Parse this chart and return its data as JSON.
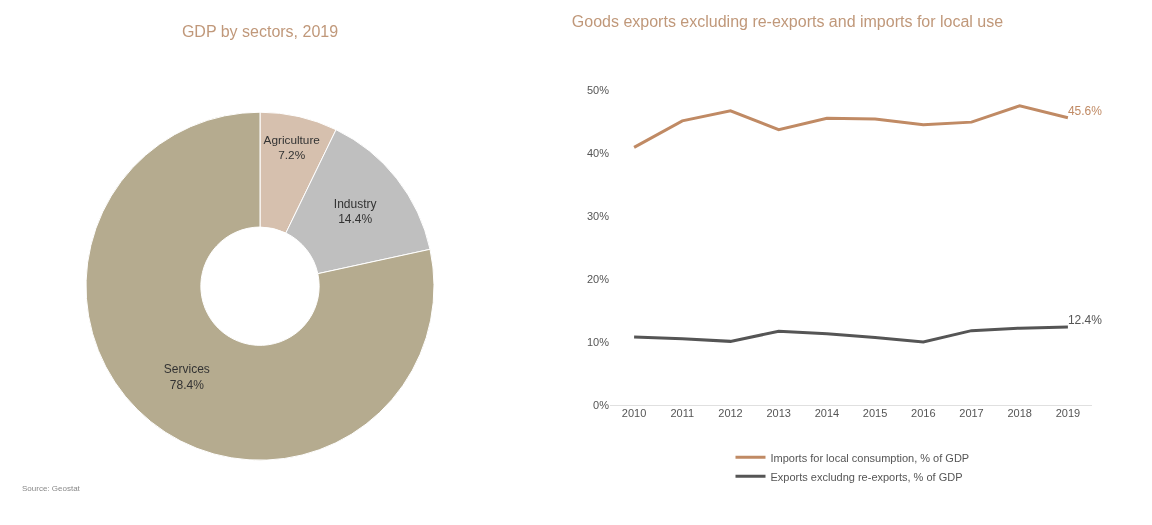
{
  "chart_data": [
    {
      "type": "donut",
      "title": "GDP by sectors, 2019",
      "categories": [
        "Agriculture",
        "Industry",
        "Services"
      ],
      "values": [
        7.2,
        14.4,
        78.4
      ],
      "value_labels": [
        "7.2%",
        "14.4%",
        "78.4%"
      ],
      "colors": [
        "#d6c0ae",
        "#bfbfbf",
        "#b5ab8f"
      ],
      "legend": false,
      "annotations": [
        "Source: Geostat"
      ]
    },
    {
      "type": "line",
      "title": "Goods exports excluding re-exports and imports for local use",
      "categories": [
        "2010",
        "2011",
        "2012",
        "2013",
        "2014",
        "2015",
        "2016",
        "2017",
        "2018",
        "2019"
      ],
      "series": [
        {
          "name": "Imports for local consumption, % of GDP",
          "color": "#c08a64",
          "values": [
            40.9,
            45.1,
            46.7,
            43.7,
            45.5,
            45.4,
            44.5,
            44.9,
            47.5,
            45.6
          ],
          "value_labels": [
            null,
            null,
            null,
            null,
            null,
            null,
            null,
            null,
            null,
            "45.6%"
          ]
        },
        {
          "name": "Exports excludng re-exports, % of GDP",
          "color": "#555555",
          "values": [
            10.8,
            10.5,
            10.1,
            11.7,
            11.3,
            10.7,
            10.0,
            11.8,
            12.2,
            12.4
          ],
          "value_labels": [
            null,
            null,
            null,
            null,
            null,
            null,
            null,
            null,
            null,
            "12.4%"
          ]
        }
      ],
      "ylim": [
        0,
        50
      ],
      "yticks": [
        {
          "value": 0,
          "label": "0%"
        },
        {
          "value": 10,
          "label": "10%"
        },
        {
          "value": 20,
          "label": "20%"
        },
        {
          "value": 30,
          "label": "30%"
        },
        {
          "value": 40,
          "label": "40%"
        },
        {
          "value": 50,
          "label": "50%"
        }
      ],
      "grid": false,
      "legend": "bottom",
      "marker": "none",
      "line_style": "solid"
    }
  ]
}
